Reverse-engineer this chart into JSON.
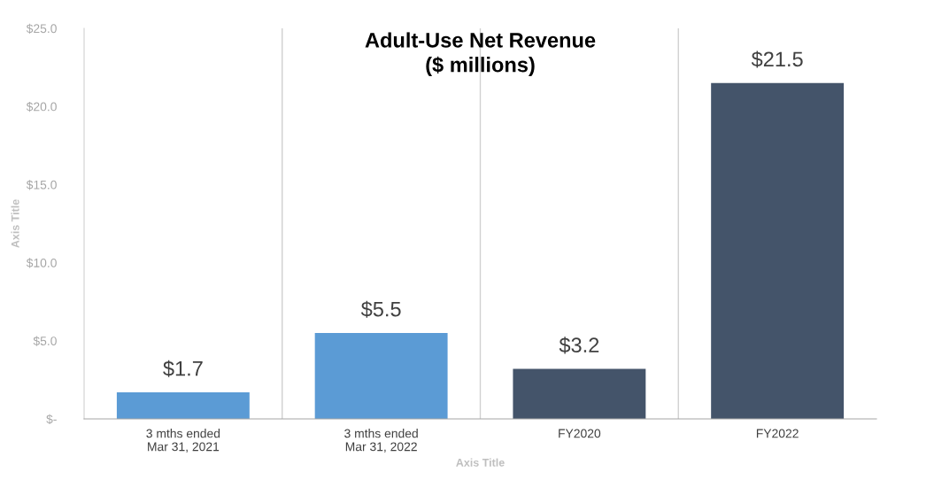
{
  "chart_data": {
    "type": "bar",
    "title": "Adult-Use Net Revenue\n($ millions)",
    "xlabel": "Axis Title",
    "ylabel": "Axis Title",
    "categories": [
      "3 mths ended\nMar 31, 2021",
      "3 mths ended\nMar 31, 2022",
      "FY2020",
      "FY2022"
    ],
    "values": [
      1.7,
      5.5,
      3.2,
      21.5
    ],
    "colors": [
      "#5b9bd5",
      "#5b9bd5",
      "#44546a",
      "#44546a"
    ],
    "value_labels": [
      "$1.7",
      "$5.5",
      "$3.2",
      "$21.5"
    ],
    "ylim": [
      0,
      25
    ],
    "yticks": [
      {
        "value": 0,
        "label": "$-"
      },
      {
        "value": 5,
        "label": "$5.0"
      },
      {
        "value": 10,
        "label": "$10.0"
      },
      {
        "value": 15,
        "label": "$15.0"
      },
      {
        "value": 20,
        "label": "$20.0"
      },
      {
        "value": 25,
        "label": "$25.0"
      }
    ],
    "grid": "x"
  }
}
